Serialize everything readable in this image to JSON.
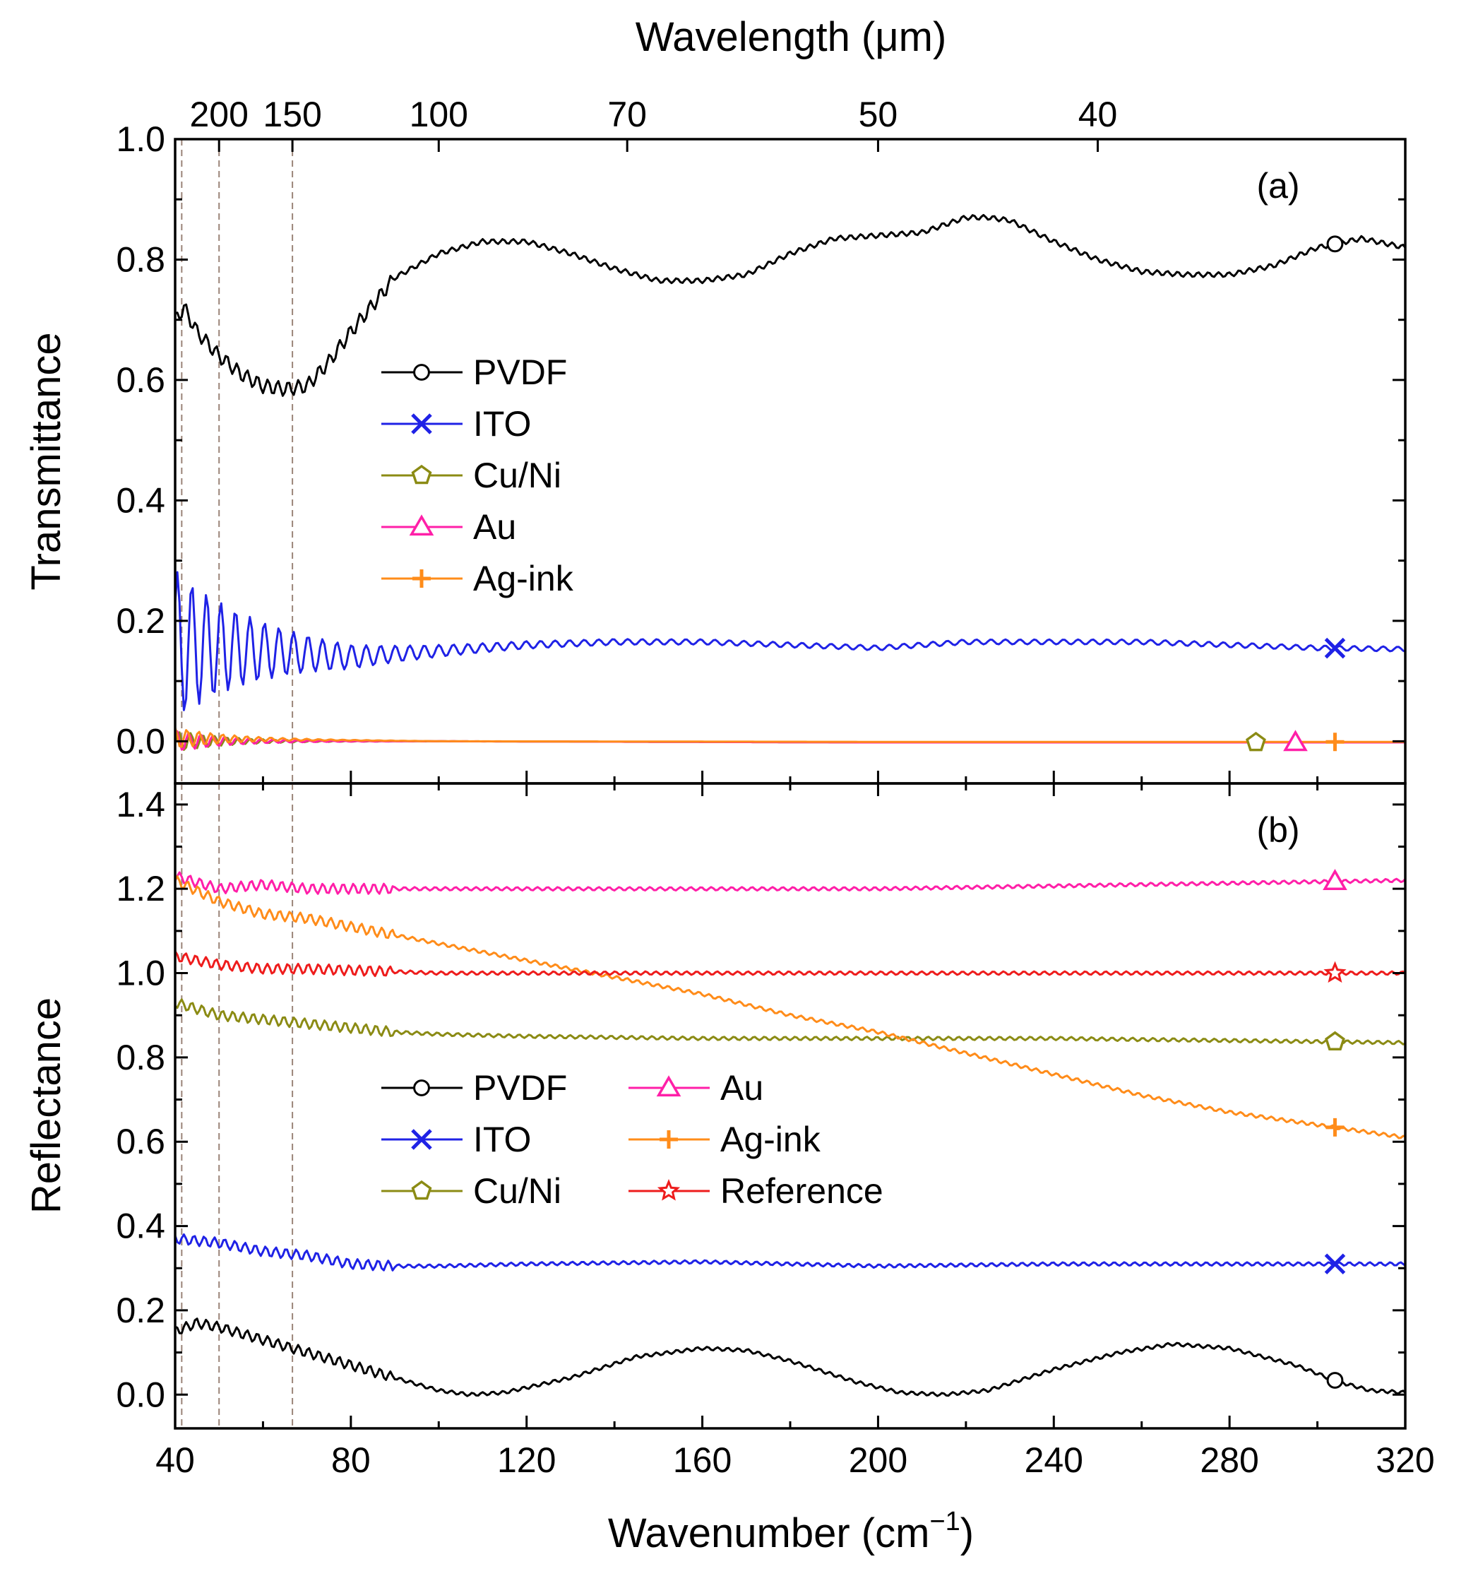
{
  "figure": {
    "top_axis_label": "Wavelength (μm)",
    "x_axis_label": "Wavenumber (cm",
    "x_axis_label_sup": "−1",
    "x_axis_label_close": ")"
  },
  "chart_data": [
    {
      "type": "line",
      "panel": "(a)",
      "ylabel": "Transmittance",
      "xlabel": "Wavenumber (cm−1)",
      "top_xlabel": "Wavelength (μm)",
      "xlim": [
        40,
        320
      ],
      "ylim": [
        -0.07,
        1.0
      ],
      "x_ticks": [
        "40",
        "80",
        "120",
        "160",
        "200",
        "240",
        "280",
        "320"
      ],
      "y_ticks": [
        "0.0",
        "0.2",
        "0.4",
        "0.6",
        "0.8",
        "1.0"
      ],
      "top_ticks": [
        {
          "label": "200",
          "wavenumber": 50
        },
        {
          "label": "150",
          "wavenumber": 66.7
        },
        {
          "label": "100",
          "wavenumber": 100
        },
        {
          "label": "70",
          "wavenumber": 142.9
        },
        {
          "label": "50",
          "wavenumber": 200
        },
        {
          "label": "40",
          "wavenumber": 250
        }
      ],
      "legend_position": "center-left",
      "series": [
        {
          "name": "PVDF",
          "color": "#000000",
          "marker": "circle",
          "marker_x": 304,
          "x": [
            40,
            42,
            45,
            50,
            55,
            60,
            65,
            70,
            75,
            80,
            90,
            100,
            110,
            120,
            130,
            140,
            150,
            160,
            170,
            180,
            190,
            200,
            210,
            220,
            225,
            230,
            240,
            250,
            260,
            270,
            280,
            290,
            300,
            310,
            320
          ],
          "y": [
            0.7,
            0.72,
            0.68,
            0.64,
            0.61,
            0.59,
            0.585,
            0.59,
            0.63,
            0.68,
            0.77,
            0.81,
            0.83,
            0.83,
            0.81,
            0.785,
            0.765,
            0.765,
            0.775,
            0.81,
            0.835,
            0.84,
            0.845,
            0.87,
            0.87,
            0.865,
            0.83,
            0.8,
            0.78,
            0.775,
            0.775,
            0.79,
            0.82,
            0.835,
            0.82
          ]
        },
        {
          "name": "ITO",
          "color": "#1f22e6",
          "marker": "x",
          "marker_x": 304,
          "x": [
            40,
            60,
            80,
            100,
            120,
            140,
            160,
            180,
            200,
            220,
            240,
            260,
            280,
            300,
            320
          ],
          "y": [
            0.16,
            0.15,
            0.14,
            0.15,
            0.16,
            0.165,
            0.165,
            0.16,
            0.155,
            0.165,
            0.165,
            0.165,
            0.16,
            0.155,
            0.153
          ]
        },
        {
          "name": "Cu/Ni",
          "color": "#8b8b14",
          "marker": "pentagon",
          "marker_x": 286,
          "x": [
            40,
            100,
            200,
            320
          ],
          "y": [
            0.0,
            0.0,
            -0.002,
            -0.002
          ]
        },
        {
          "name": "Au",
          "color": "#ff1fa8",
          "marker": "triangle",
          "marker_x": 295,
          "x": [
            40,
            100,
            200,
            320
          ],
          "y": [
            0.0,
            0.0,
            -0.002,
            -0.002
          ]
        },
        {
          "name": "Ag-ink",
          "color": "#ff8c1a",
          "marker": "plus",
          "marker_x": 304,
          "x": [
            40,
            100,
            200,
            320
          ],
          "y": [
            0.005,
            0.0,
            -0.001,
            -0.001
          ]
        }
      ]
    },
    {
      "type": "line",
      "panel": "(b)",
      "ylabel": "Reflectance",
      "xlabel": "Wavenumber (cm−1)",
      "xlim": [
        40,
        320
      ],
      "ylim": [
        -0.08,
        1.45
      ],
      "x_ticks": [
        "40",
        "80",
        "120",
        "160",
        "200",
        "240",
        "280",
        "320"
      ],
      "y_ticks": [
        "0.0",
        "0.2",
        "0.4",
        "0.6",
        "0.8",
        "1.0",
        "1.2",
        "1.4"
      ],
      "legend_position": "center",
      "series": [
        {
          "name": "PVDF",
          "color": "#000000",
          "marker": "circle",
          "marker_x": 304,
          "x": [
            40,
            45,
            50,
            60,
            70,
            80,
            90,
            100,
            107,
            115,
            130,
            145,
            160,
            170,
            180,
            195,
            205,
            215,
            225,
            240,
            255,
            267,
            280,
            295,
            305,
            312,
            320
          ],
          "y": [
            0.15,
            0.17,
            0.16,
            0.13,
            0.1,
            0.07,
            0.04,
            0.01,
            0.0,
            0.005,
            0.04,
            0.09,
            0.11,
            0.105,
            0.08,
            0.03,
            0.005,
            0.0,
            0.01,
            0.06,
            0.1,
            0.12,
            0.11,
            0.07,
            0.03,
            0.01,
            0.005
          ]
        },
        {
          "name": "ITO",
          "color": "#1f22e6",
          "marker": "x",
          "marker_x": 304,
          "x": [
            40,
            50,
            60,
            70,
            80,
            90,
            100,
            120,
            160,
            200,
            240,
            280,
            320
          ],
          "y": [
            0.37,
            0.36,
            0.34,
            0.33,
            0.31,
            0.305,
            0.305,
            0.31,
            0.315,
            0.305,
            0.31,
            0.31,
            0.31
          ]
        },
        {
          "name": "Cu/Ni",
          "color": "#8b8b14",
          "marker": "pentagon",
          "marker_x": 304,
          "x": [
            40,
            50,
            60,
            70,
            80,
            90,
            100,
            120,
            160,
            200,
            240,
            280,
            320
          ],
          "y": [
            0.93,
            0.9,
            0.89,
            0.88,
            0.87,
            0.86,
            0.855,
            0.85,
            0.845,
            0.845,
            0.845,
            0.84,
            0.835
          ]
        },
        {
          "name": "Au",
          "color": "#ff1fa8",
          "marker": "triangle",
          "marker_x": 304,
          "x": [
            40,
            50,
            60,
            70,
            80,
            100,
            140,
            200,
            260,
            320
          ],
          "y": [
            1.23,
            1.2,
            1.21,
            1.2,
            1.2,
            1.2,
            1.2,
            1.2,
            1.21,
            1.22
          ]
        },
        {
          "name": "Ag-ink",
          "color": "#ff8c1a",
          "marker": "plus",
          "marker_x": 304,
          "x": [
            40,
            50,
            60,
            70,
            80,
            100,
            120,
            140,
            160,
            180,
            200,
            220,
            240,
            260,
            280,
            300,
            320
          ],
          "y": [
            1.22,
            1.17,
            1.14,
            1.13,
            1.11,
            1.07,
            1.03,
            0.99,
            0.95,
            0.9,
            0.86,
            0.81,
            0.76,
            0.71,
            0.67,
            0.64,
            0.61
          ]
        },
        {
          "name": "Reference",
          "color": "#ee1c1c",
          "marker": "star",
          "marker_x": 304,
          "x": [
            40,
            50,
            60,
            70,
            100,
            160,
            220,
            280,
            320
          ],
          "y": [
            1.04,
            1.02,
            1.01,
            1.01,
            1.0,
            1.0,
            1.0,
            1.0,
            1.0
          ]
        }
      ]
    }
  ]
}
